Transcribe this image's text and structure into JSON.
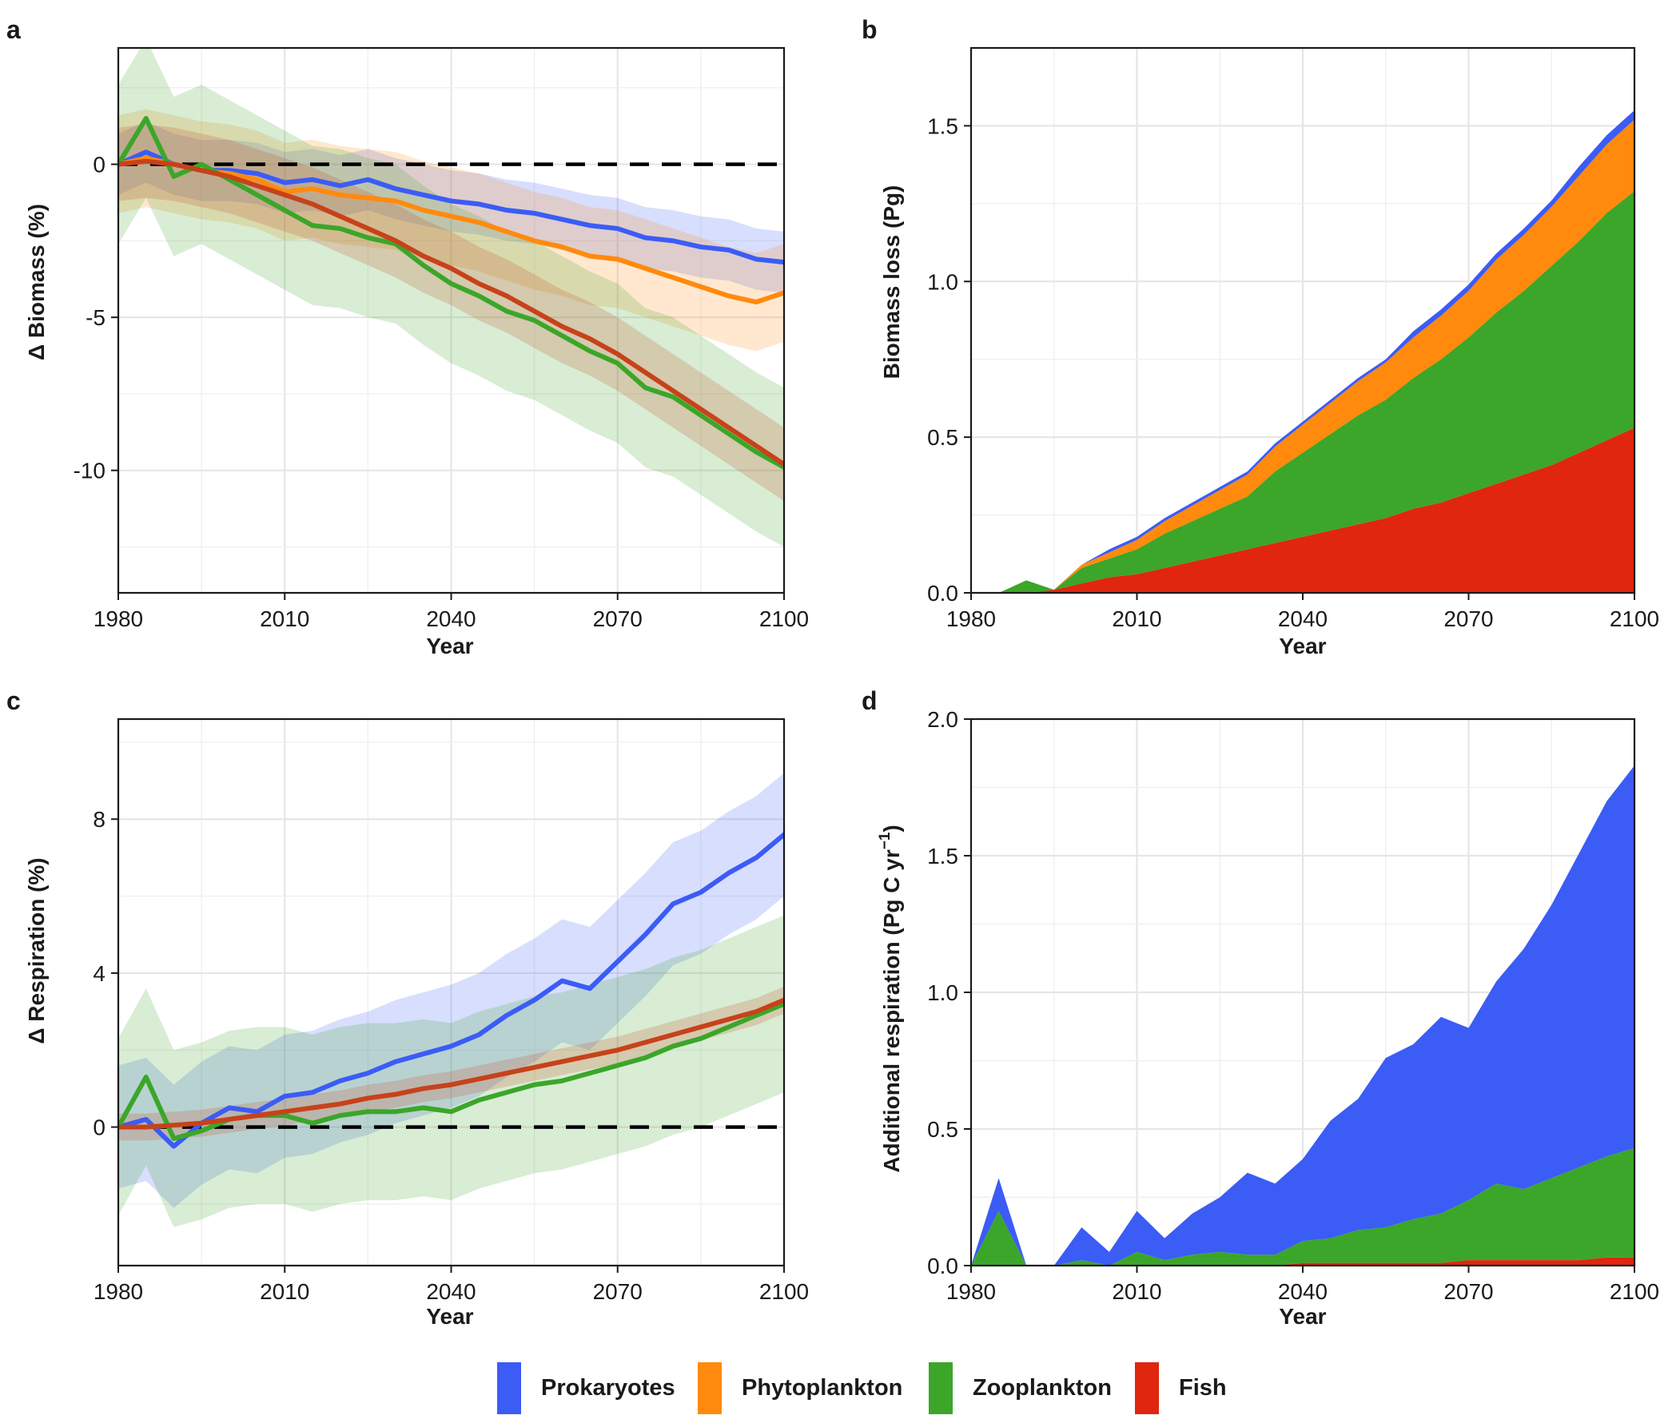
{
  "legend": [
    {
      "label": "Prokaryotes",
      "color": "#3b5cf5"
    },
    {
      "label": "Phytoplankton",
      "color": "#ff8a0d"
    },
    {
      "label": "Zooplankton",
      "color": "#3ba629"
    },
    {
      "label": "Fish",
      "color": "#e0260f"
    }
  ],
  "colors": {
    "prokaryotes": "#3b5cf5",
    "phytoplankton": "#ff8a0d",
    "zooplankton": "#3ba629",
    "fish": "#e0260f",
    "fish_line": "#c7421a"
  },
  "chart_data": [
    {
      "id": "a",
      "panel_letter": "a",
      "type": "line",
      "xlabel": "Year",
      "ylabel": "Δ Biomass (%)",
      "xlim": [
        1980,
        2100
      ],
      "ylim": [
        -14,
        3.8
      ],
      "xticks": [
        1980,
        2010,
        2040,
        2070,
        2100
      ],
      "xtick_labels": [
        "1980",
        "2010",
        "2040",
        "2070",
        "2100"
      ],
      "yticks": [
        0,
        -5,
        -10
      ],
      "ytick_labels": [
        "0",
        "-5",
        "-10"
      ],
      "reference_line": 0,
      "grid": true,
      "x": [
        1980,
        1985,
        1990,
        1995,
        2000,
        2005,
        2010,
        2015,
        2020,
        2025,
        2030,
        2035,
        2040,
        2045,
        2050,
        2055,
        2060,
        2065,
        2070,
        2075,
        2080,
        2085,
        2090,
        2095,
        2100
      ],
      "series": [
        {
          "name": "Prokaryotes",
          "color": "#3b5cf5",
          "values": [
            0.0,
            0.4,
            0.0,
            -0.2,
            -0.2,
            -0.3,
            -0.6,
            -0.5,
            -0.7,
            -0.5,
            -0.8,
            -1.0,
            -1.2,
            -1.3,
            -1.5,
            -1.6,
            -1.8,
            -2.0,
            -2.1,
            -2.4,
            -2.5,
            -2.7,
            -2.8,
            -3.1,
            -3.2
          ],
          "band": 1.0
        },
        {
          "name": "Phytoplankton",
          "color": "#ff8a0d",
          "values": [
            0.0,
            0.2,
            0.0,
            -0.2,
            -0.3,
            -0.5,
            -0.9,
            -0.8,
            -1.0,
            -1.1,
            -1.2,
            -1.5,
            -1.7,
            -1.9,
            -2.2,
            -2.5,
            -2.7,
            -3.0,
            -3.1,
            -3.4,
            -3.7,
            -4.0,
            -4.3,
            -4.5,
            -4.2
          ],
          "band": 1.6
        },
        {
          "name": "Zooplankton",
          "color": "#3ba629",
          "values": [
            0.0,
            1.5,
            -0.4,
            0.0,
            -0.5,
            -1.0,
            -1.5,
            -2.0,
            -2.1,
            -2.4,
            -2.6,
            -3.3,
            -3.9,
            -4.3,
            -4.8,
            -5.1,
            -5.6,
            -6.1,
            -6.5,
            -7.3,
            -7.6,
            -8.2,
            -8.8,
            -9.4,
            -9.9
          ],
          "band": 2.6
        },
        {
          "name": "Fish",
          "color": "#c7421a",
          "values": [
            0.0,
            0.1,
            0.0,
            -0.2,
            -0.4,
            -0.7,
            -1.0,
            -1.3,
            -1.7,
            -2.1,
            -2.5,
            -3.0,
            -3.4,
            -3.9,
            -4.3,
            -4.8,
            -5.3,
            -5.7,
            -6.2,
            -6.8,
            -7.4,
            -8.0,
            -8.6,
            -9.2,
            -9.8
          ],
          "band": 1.2
        }
      ]
    },
    {
      "id": "b",
      "panel_letter": "b",
      "type": "area",
      "stacked": true,
      "xlabel": "Year",
      "ylabel": "Biomass loss (Pg)",
      "xlim": [
        1980,
        2100
      ],
      "ylim": [
        0,
        1.75
      ],
      "xticks": [
        1980,
        2010,
        2040,
        2070,
        2100
      ],
      "xtick_labels": [
        "1980",
        "2010",
        "2040",
        "2070",
        "2100"
      ],
      "yticks": [
        0,
        0.5,
        1.0,
        1.5
      ],
      "ytick_labels": [
        "0.0",
        "0.5",
        "1.0",
        "1.5"
      ],
      "grid": true,
      "x": [
        1980,
        1985,
        1990,
        1995,
        2000,
        2005,
        2010,
        2015,
        2020,
        2025,
        2030,
        2035,
        2040,
        2045,
        2050,
        2055,
        2060,
        2065,
        2070,
        2075,
        2080,
        2085,
        2090,
        2095,
        2100
      ],
      "series": [
        {
          "name": "Fish",
          "color": "#e0260f",
          "values": [
            0.0,
            0.0,
            0.0,
            0.01,
            0.03,
            0.05,
            0.06,
            0.08,
            0.1,
            0.12,
            0.14,
            0.16,
            0.18,
            0.2,
            0.22,
            0.24,
            0.27,
            0.29,
            0.32,
            0.35,
            0.38,
            0.41,
            0.45,
            0.49,
            0.53
          ]
        },
        {
          "name": "Zooplankton",
          "color": "#3ba629",
          "values": [
            0.0,
            0.0,
            0.04,
            0.0,
            0.05,
            0.06,
            0.08,
            0.11,
            0.13,
            0.15,
            0.17,
            0.23,
            0.27,
            0.31,
            0.35,
            0.38,
            0.42,
            0.46,
            0.5,
            0.55,
            0.59,
            0.64,
            0.68,
            0.73,
            0.76
          ]
        },
        {
          "name": "Phytoplankton",
          "color": "#ff8a0d",
          "values": [
            0.0,
            0.0,
            0.0,
            0.0,
            0.01,
            0.02,
            0.03,
            0.04,
            0.05,
            0.06,
            0.07,
            0.08,
            0.09,
            0.1,
            0.11,
            0.12,
            0.13,
            0.14,
            0.15,
            0.17,
            0.18,
            0.19,
            0.21,
            0.22,
            0.23
          ]
        },
        {
          "name": "Prokaryotes",
          "color": "#3b5cf5",
          "values": [
            0.0,
            0.0,
            0.0,
            0.0,
            0.0,
            0.01,
            0.01,
            0.01,
            0.01,
            0.01,
            0.01,
            0.01,
            0.01,
            0.01,
            0.01,
            0.01,
            0.02,
            0.02,
            0.02,
            0.02,
            0.02,
            0.02,
            0.03,
            0.03,
            0.03
          ]
        }
      ]
    },
    {
      "id": "c",
      "panel_letter": "c",
      "type": "line",
      "xlabel": "Year",
      "ylabel": "Δ Respiration (%)",
      "xlim": [
        1980,
        2100
      ],
      "ylim": [
        -3.6,
        10.6
      ],
      "xticks": [
        1980,
        2010,
        2040,
        2070,
        2100
      ],
      "xtick_labels": [
        "1980",
        "2010",
        "2040",
        "2070",
        "2100"
      ],
      "yticks": [
        0,
        4,
        8
      ],
      "ytick_labels": [
        "0",
        "4",
        "8"
      ],
      "reference_line": 0,
      "grid": true,
      "x": [
        1980,
        1985,
        1990,
        1995,
        2000,
        2005,
        2010,
        2015,
        2020,
        2025,
        2030,
        2035,
        2040,
        2045,
        2050,
        2055,
        2060,
        2065,
        2070,
        2075,
        2080,
        2085,
        2090,
        2095,
        2100
      ],
      "series": [
        {
          "name": "Prokaryotes",
          "color": "#3b5cf5",
          "values": [
            0.0,
            0.2,
            -0.5,
            0.1,
            0.5,
            0.4,
            0.8,
            0.9,
            1.2,
            1.4,
            1.7,
            1.9,
            2.1,
            2.4,
            2.9,
            3.3,
            3.8,
            3.6,
            4.3,
            5.0,
            5.8,
            6.1,
            6.6,
            7.0,
            7.6
          ],
          "band": 1.6
        },
        {
          "name": "Zooplankton",
          "color": "#3ba629",
          "values": [
            0.0,
            1.3,
            -0.3,
            -0.1,
            0.2,
            0.3,
            0.3,
            0.1,
            0.3,
            0.4,
            0.4,
            0.5,
            0.4,
            0.7,
            0.9,
            1.1,
            1.2,
            1.4,
            1.6,
            1.8,
            2.1,
            2.3,
            2.6,
            2.9,
            3.2
          ],
          "band": 2.3
        },
        {
          "name": "Fish",
          "color": "#c7421a",
          "values": [
            0.0,
            0.0,
            0.05,
            0.1,
            0.2,
            0.3,
            0.4,
            0.5,
            0.6,
            0.75,
            0.85,
            1.0,
            1.1,
            1.25,
            1.4,
            1.55,
            1.7,
            1.85,
            2.0,
            2.2,
            2.4,
            2.6,
            2.8,
            3.0,
            3.3
          ],
          "band": 0.35
        }
      ]
    },
    {
      "id": "d",
      "panel_letter": "d",
      "type": "area",
      "stacked": true,
      "xlabel": "Year",
      "ylabel": "Additional respiration (Pg C yr",
      "ylabel_superscript": "−1",
      "ylabel_suffix": ")",
      "xlim": [
        1980,
        2100
      ],
      "ylim": [
        0,
        2.0
      ],
      "xticks": [
        1980,
        2010,
        2040,
        2070,
        2100
      ],
      "xtick_labels": [
        "1980",
        "2010",
        "2040",
        "2070",
        "2100"
      ],
      "yticks": [
        0,
        0.5,
        1.0,
        1.5,
        2.0
      ],
      "ytick_labels": [
        "0.0",
        "0.5",
        "1.0",
        "1.5",
        "2.0"
      ],
      "grid": true,
      "x": [
        1980,
        1985,
        1990,
        1995,
        2000,
        2005,
        2010,
        2015,
        2020,
        2025,
        2030,
        2035,
        2040,
        2045,
        2050,
        2055,
        2060,
        2065,
        2070,
        2075,
        2080,
        2085,
        2090,
        2095,
        2100
      ],
      "series": [
        {
          "name": "Fish",
          "color": "#e0260f",
          "values": [
            0.0,
            0.0,
            0.0,
            0.0,
            0.0,
            0.0,
            0.0,
            0.0,
            0.0,
            0.0,
            0.0,
            0.0,
            0.01,
            0.01,
            0.01,
            0.01,
            0.01,
            0.01,
            0.02,
            0.02,
            0.02,
            0.02,
            0.02,
            0.03,
            0.03
          ]
        },
        {
          "name": "Zooplankton",
          "color": "#3ba629",
          "values": [
            0.0,
            0.2,
            0.0,
            0.0,
            0.02,
            0.0,
            0.05,
            0.02,
            0.04,
            0.05,
            0.04,
            0.04,
            0.08,
            0.09,
            0.12,
            0.13,
            0.16,
            0.18,
            0.22,
            0.28,
            0.26,
            0.3,
            0.34,
            0.37,
            0.4
          ]
        },
        {
          "name": "Prokaryotes",
          "color": "#3b5cf5",
          "values": [
            0.0,
            0.12,
            0.0,
            0.0,
            0.12,
            0.05,
            0.15,
            0.08,
            0.15,
            0.2,
            0.3,
            0.26,
            0.3,
            0.43,
            0.48,
            0.62,
            0.64,
            0.72,
            0.63,
            0.74,
            0.88,
            1.0,
            1.15,
            1.3,
            1.4
          ]
        }
      ]
    }
  ]
}
